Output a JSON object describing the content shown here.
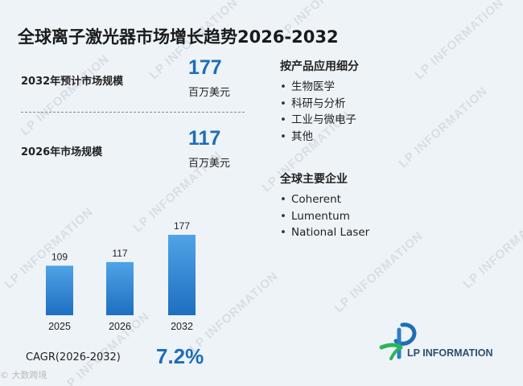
{
  "title": "全球离子激光器市场增长趋势2026-2032",
  "metrics": [
    {
      "label": "2032年预计市场规模",
      "value": "177",
      "unit": "百万美元"
    },
    {
      "label": "2026年市场规模",
      "value": "117",
      "unit": "百万美元"
    }
  ],
  "segments": {
    "heading": "按产品应用细分",
    "items": [
      "生物医学",
      "科研与分析",
      "工业与微电子",
      "其他"
    ]
  },
  "companies": {
    "heading": "全球主要企业",
    "items": [
      "Coherent",
      "Lumentum",
      "National Laser"
    ]
  },
  "cagr": {
    "label": "CAGR(2026-2032)",
    "value": "7.2%"
  },
  "logo": {
    "text": "LP INFORMATION",
    "watermark": "LP INFORMATION"
  },
  "source_mark": "© 大数跨境",
  "colors": {
    "accent": "#1f6db5",
    "bar_top": "#4fa3e6",
    "bar_bottom": "#1e6fc0"
  },
  "chart_data": {
    "type": "bar",
    "categories": [
      "2025",
      "2026",
      "2032"
    ],
    "values": [
      109,
      117,
      177
    ],
    "title": "",
    "xlabel": "",
    "ylabel": "",
    "ylim": [
      0,
      177
    ]
  }
}
